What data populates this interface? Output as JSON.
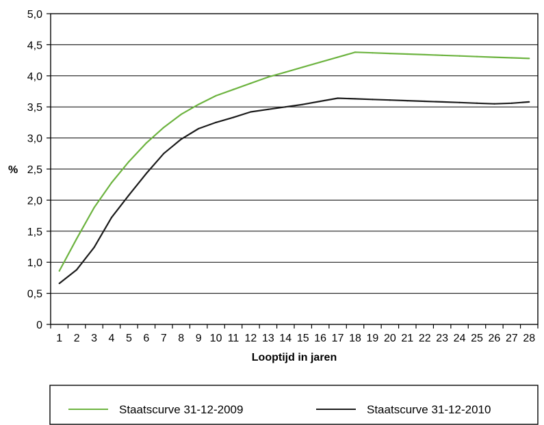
{
  "chart_data": {
    "type": "line",
    "xlabel": "Looptijd in jaren",
    "ylabel": "%",
    "x": [
      1,
      2,
      3,
      4,
      5,
      6,
      7,
      8,
      9,
      10,
      11,
      12,
      13,
      14,
      15,
      16,
      17,
      18,
      19,
      20,
      21,
      22,
      23,
      24,
      25,
      26,
      27,
      28
    ],
    "x_tick_labels": [
      "1",
      "2",
      "3",
      "4",
      "5",
      "6",
      "7",
      "8",
      "9",
      "10",
      "11",
      "12",
      "13",
      "14",
      "15",
      "16",
      "17",
      "18",
      "19",
      "20",
      "21",
      "22",
      "23",
      "24",
      "25",
      "26",
      "27",
      "28"
    ],
    "y_ticks": [
      0,
      0.5,
      1.0,
      1.5,
      2.0,
      2.5,
      3.0,
      3.5,
      4.0,
      4.5,
      5.0
    ],
    "y_tick_labels": [
      "0",
      "0,5",
      "1,0",
      "1,5",
      "2,0",
      "2,5",
      "3,0",
      "3,5",
      "4,0",
      "4,5",
      "5,0"
    ],
    "ylim": [
      0,
      5
    ],
    "grid": "horizontal",
    "legend_position": "bottom",
    "series": [
      {
        "name": "Staatscurve 31-12-2009",
        "color": "#6cb33f",
        "values": [
          0.86,
          1.38,
          1.88,
          2.28,
          2.62,
          2.92,
          3.17,
          3.38,
          3.54,
          3.68,
          3.78,
          3.88,
          3.98,
          4.06,
          4.14,
          4.22,
          4.3,
          4.38,
          4.37,
          4.36,
          4.35,
          4.34,
          4.33,
          4.32,
          4.31,
          4.3,
          4.29,
          4.28
        ]
      },
      {
        "name": "Staatscurve 31-12-2010",
        "color": "#1a1a1a",
        "values": [
          0.66,
          0.88,
          1.24,
          1.72,
          2.08,
          2.43,
          2.75,
          2.98,
          3.15,
          3.25,
          3.33,
          3.42,
          3.46,
          3.5,
          3.54,
          3.59,
          3.64,
          3.63,
          3.62,
          3.61,
          3.6,
          3.59,
          3.58,
          3.57,
          3.56,
          3.55,
          3.56,
          3.58
        ]
      }
    ]
  }
}
